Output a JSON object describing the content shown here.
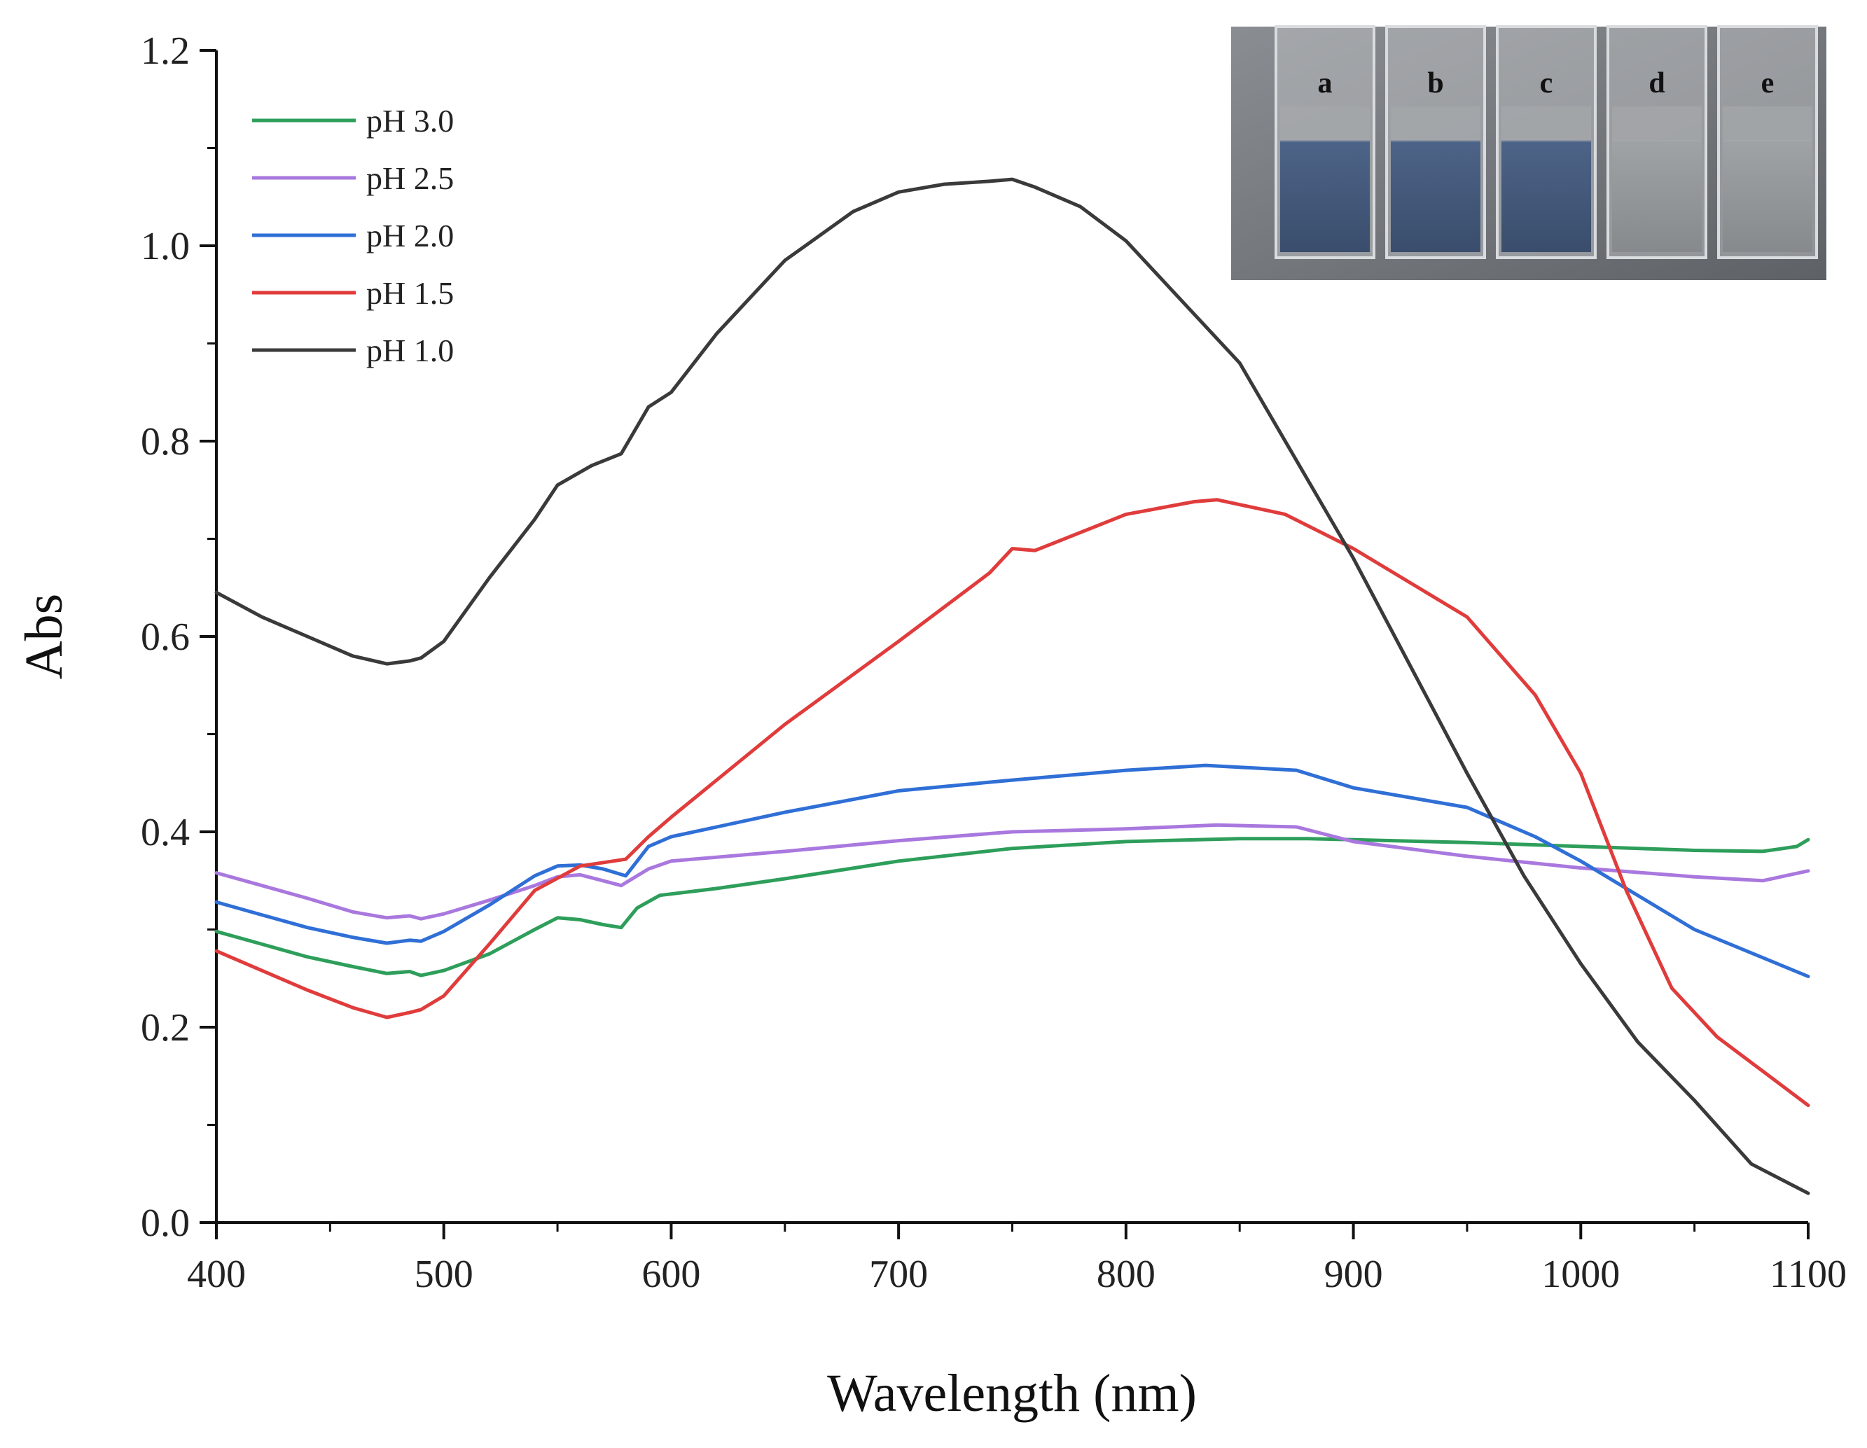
{
  "chart_data": {
    "type": "line",
    "title": "",
    "xlabel": "Wavelength (nm)",
    "ylabel": "Abs",
    "xlim": [
      400,
      1100
    ],
    "ylim": [
      0.0,
      1.2
    ],
    "xticks": [
      400,
      500,
      600,
      700,
      800,
      900,
      1000,
      1100
    ],
    "xtick_labels": [
      "400",
      "500",
      "600",
      "700",
      "800",
      "900",
      "1000",
      "1100"
    ],
    "yticks": [
      0.0,
      0.2,
      0.4,
      0.6,
      0.8,
      1.0,
      1.2
    ],
    "ytick_labels": [
      "0.0",
      "0.2",
      "0.4",
      "0.6",
      "0.8",
      "1.0",
      "1.2"
    ],
    "grid": false,
    "legend_position": "top-left",
    "series": [
      {
        "name": "pH 3.0",
        "color": "#2e9e5b",
        "x": [
          400,
          420,
          440,
          460,
          475,
          485,
          490,
          500,
          520,
          540,
          550,
          560,
          570,
          578,
          585,
          595,
          620,
          650,
          700,
          750,
          800,
          850,
          880,
          900,
          950,
          1000,
          1050,
          1080,
          1095,
          1100
        ],
        "y": [
          0.298,
          0.285,
          0.272,
          0.262,
          0.255,
          0.257,
          0.253,
          0.258,
          0.275,
          0.3,
          0.312,
          0.31,
          0.305,
          0.302,
          0.322,
          0.335,
          0.342,
          0.352,
          0.37,
          0.383,
          0.39,
          0.393,
          0.393,
          0.392,
          0.389,
          0.385,
          0.381,
          0.38,
          0.385,
          0.392
        ]
      },
      {
        "name": "pH 2.5",
        "color": "#a978de",
        "x": [
          400,
          420,
          440,
          460,
          475,
          485,
          490,
          500,
          520,
          540,
          550,
          560,
          570,
          578,
          590,
          600,
          650,
          700,
          750,
          800,
          840,
          875,
          900,
          950,
          1000,
          1050,
          1080,
          1100
        ],
        "y": [
          0.358,
          0.345,
          0.332,
          0.318,
          0.312,
          0.314,
          0.311,
          0.316,
          0.33,
          0.345,
          0.354,
          0.356,
          0.35,
          0.345,
          0.362,
          0.37,
          0.38,
          0.391,
          0.4,
          0.403,
          0.407,
          0.405,
          0.39,
          0.375,
          0.363,
          0.354,
          0.35,
          0.36
        ]
      },
      {
        "name": "pH 2.0",
        "color": "#2f6fd6",
        "x": [
          400,
          420,
          440,
          460,
          475,
          485,
          490,
          500,
          520,
          540,
          550,
          560,
          570,
          580,
          590,
          600,
          650,
          700,
          750,
          800,
          835,
          875,
          900,
          950,
          980,
          1000,
          1050,
          1100
        ],
        "y": [
          0.328,
          0.315,
          0.302,
          0.292,
          0.286,
          0.289,
          0.288,
          0.298,
          0.325,
          0.355,
          0.365,
          0.366,
          0.362,
          0.355,
          0.385,
          0.395,
          0.42,
          0.442,
          0.453,
          0.463,
          0.468,
          0.463,
          0.445,
          0.425,
          0.395,
          0.37,
          0.3,
          0.252
        ]
      },
      {
        "name": "pH 1.5",
        "color": "#e03c3c",
        "x": [
          400,
          420,
          440,
          460,
          475,
          485,
          490,
          500,
          520,
          540,
          560,
          580,
          590,
          600,
          650,
          700,
          740,
          750,
          760,
          800,
          830,
          840,
          870,
          900,
          950,
          980,
          1000,
          1020,
          1040,
          1060,
          1080,
          1100
        ],
        "y": [
          0.278,
          0.258,
          0.238,
          0.22,
          0.21,
          0.215,
          0.218,
          0.232,
          0.285,
          0.34,
          0.365,
          0.372,
          0.395,
          0.415,
          0.51,
          0.595,
          0.665,
          0.69,
          0.688,
          0.725,
          0.738,
          0.74,
          0.725,
          0.69,
          0.62,
          0.54,
          0.46,
          0.34,
          0.24,
          0.19,
          0.155,
          0.12
        ]
      },
      {
        "name": "pH 1.0",
        "color": "#3a3a3a",
        "x": [
          400,
          420,
          440,
          460,
          475,
          485,
          490,
          500,
          520,
          540,
          550,
          565,
          578,
          580,
          590,
          600,
          620,
          650,
          680,
          700,
          720,
          740,
          750,
          760,
          780,
          800,
          820,
          850,
          870,
          900,
          925,
          950,
          975,
          1000,
          1025,
          1050,
          1075,
          1100
        ],
        "y": [
          0.645,
          0.62,
          0.6,
          0.58,
          0.572,
          0.575,
          0.578,
          0.595,
          0.66,
          0.72,
          0.755,
          0.775,
          0.787,
          0.795,
          0.835,
          0.85,
          0.91,
          0.985,
          1.035,
          1.055,
          1.063,
          1.066,
          1.068,
          1.06,
          1.04,
          1.005,
          0.955,
          0.88,
          0.8,
          0.68,
          0.57,
          0.46,
          0.355,
          0.265,
          0.185,
          0.125,
          0.06,
          0.03
        ]
      }
    ],
    "inset": {
      "description_labels": [
        "a",
        "b",
        "c",
        "d",
        "e"
      ]
    }
  }
}
